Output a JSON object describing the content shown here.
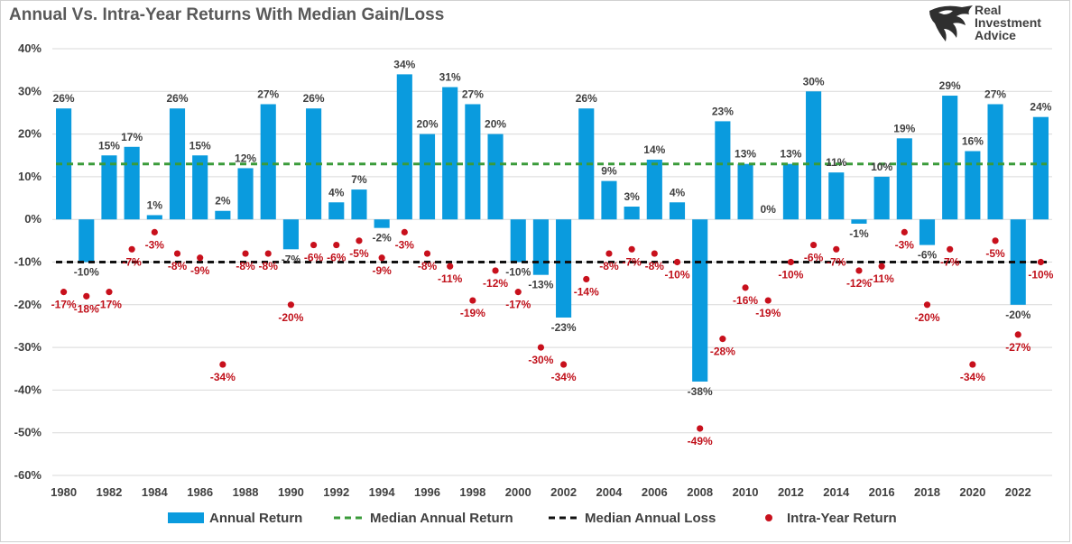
{
  "title": "Annual Vs. Intra-Year Returns With Median Gain/Loss",
  "brand": {
    "line1": "Real",
    "line2": "Investment",
    "line3": "Advice"
  },
  "colors": {
    "bar": "#0a9bde",
    "median_gain": "#3a9b3a",
    "median_loss": "#111111",
    "dot": "#c8101c",
    "text": "#404040",
    "dot_text": "#c0101a"
  },
  "chart_data": {
    "type": "bar",
    "categories": [
      "1980",
      "1981",
      "1982",
      "1983",
      "1984",
      "1985",
      "1986",
      "1987",
      "1988",
      "1989",
      "1990",
      "1991",
      "1992",
      "1993",
      "1994",
      "1995",
      "1996",
      "1997",
      "1998",
      "1999",
      "2000",
      "2001",
      "2002",
      "2003",
      "2004",
      "2005",
      "2006",
      "2007",
      "2008",
      "2009",
      "2010",
      "2011",
      "2012",
      "2013",
      "2014",
      "2015",
      "2016",
      "2017",
      "2018",
      "2019",
      "2020",
      "2021",
      "2022",
      "2023"
    ],
    "x_tick_labels": [
      "1980",
      "1982",
      "1984",
      "1986",
      "1988",
      "1990",
      "1992",
      "1994",
      "1996",
      "1998",
      "2000",
      "2002",
      "2004",
      "2006",
      "2008",
      "2010",
      "2012",
      "2014",
      "2016",
      "2018",
      "2020",
      "2022"
    ],
    "series": [
      {
        "name": "Annual Return",
        "type": "bar",
        "values": [
          26,
          -10,
          15,
          17,
          1,
          26,
          15,
          2,
          12,
          27,
          -7,
          26,
          4,
          7,
          -2,
          34,
          20,
          31,
          27,
          20,
          -10,
          -13,
          -23,
          26,
          9,
          3,
          14,
          4,
          -38,
          23,
          13,
          0,
          13,
          30,
          11,
          -1,
          10,
          19,
          -6,
          29,
          16,
          27,
          -20,
          24
        ]
      },
      {
        "name": "Intra-Year Return",
        "type": "scatter",
        "values": [
          -17,
          -18,
          -17,
          -7,
          -3,
          -8,
          -9,
          -34,
          -8,
          -8,
          -20,
          -6,
          -6,
          -5,
          -9,
          -3,
          -8,
          -11,
          -19,
          -12,
          -17,
          -30,
          -34,
          -14,
          -8,
          -7,
          -8,
          -10,
          -49,
          -28,
          -16,
          -19,
          -10,
          -6,
          -7,
          -12,
          -11,
          -3,
          -20,
          -7,
          -34,
          -5,
          -27,
          -10
        ]
      },
      {
        "name": "Median Annual Return",
        "type": "line",
        "value": 13
      },
      {
        "name": "Median Annual Loss",
        "type": "line",
        "value": -10
      }
    ],
    "y_tick_labels": [
      "40%",
      "30%",
      "20%",
      "10%",
      "0%",
      "-10%",
      "-20%",
      "-30%",
      "-40%",
      "-50%",
      "-60%"
    ],
    "y_ticks": [
      40,
      30,
      20,
      10,
      0,
      -10,
      -20,
      -30,
      -40,
      -50,
      -60
    ],
    "ylim": [
      -60,
      40
    ],
    "grid": true,
    "legend": "bottom"
  }
}
